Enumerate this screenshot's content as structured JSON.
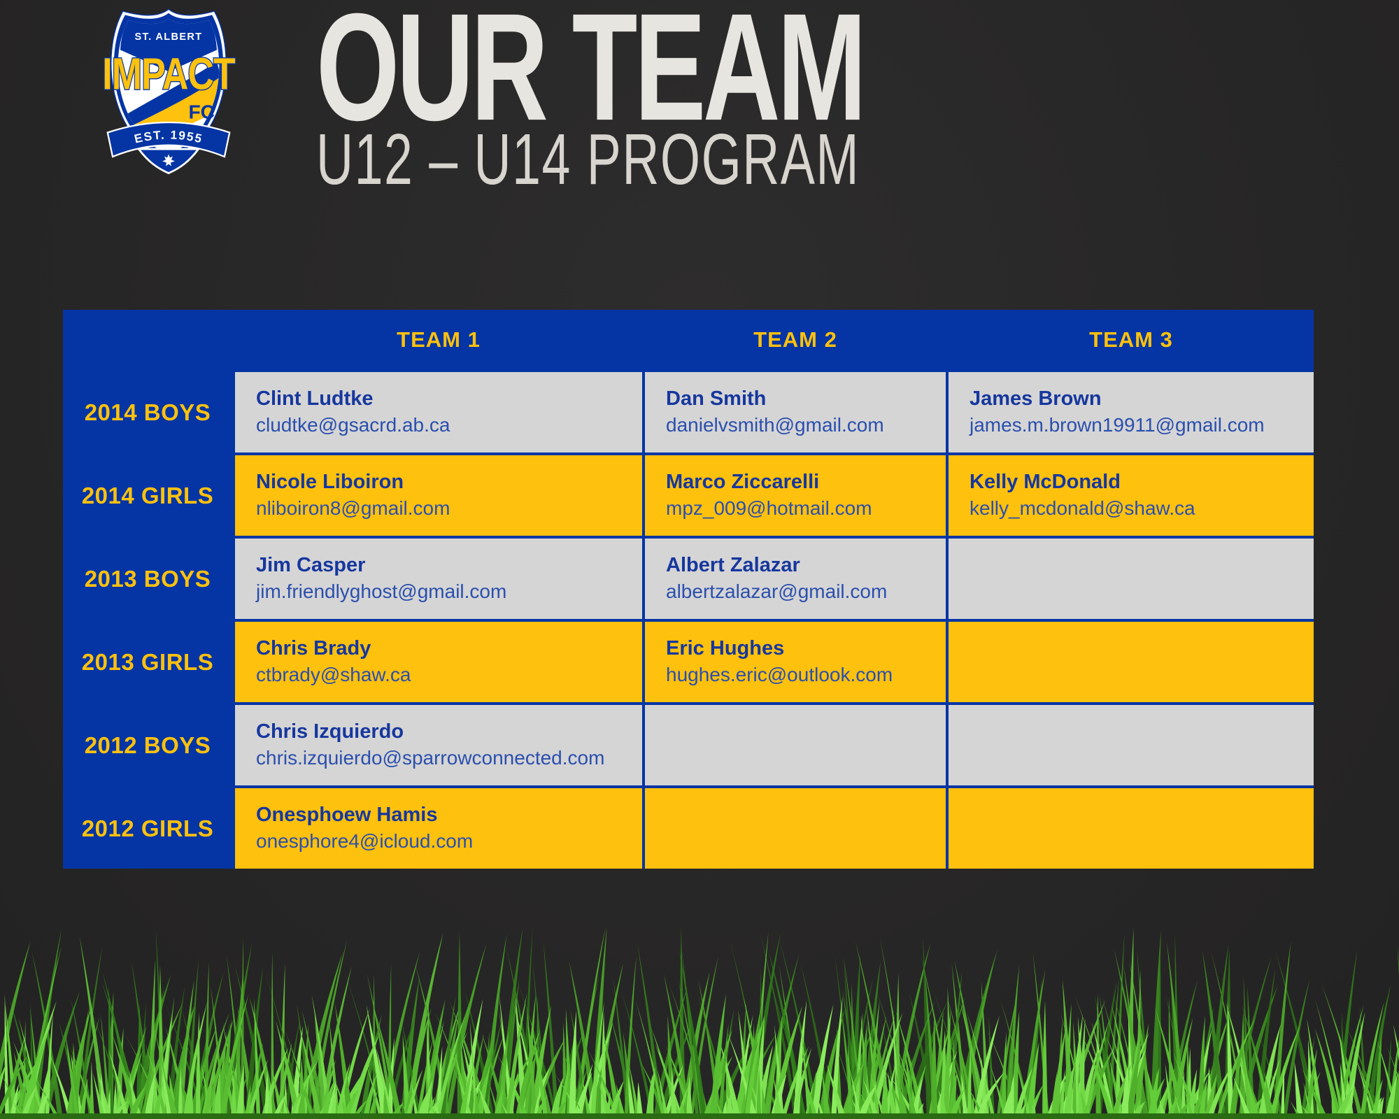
{
  "page": {
    "background_color": "#272626"
  },
  "logo": {
    "location": "ST. ALBERT",
    "name": "IMPACT",
    "suffix": "FC",
    "established": "EST. 1955"
  },
  "header": {
    "title": "OUR TEAM",
    "subtitle": "U12 – U14 PROGRAM"
  },
  "colors": {
    "accent_blue": "#0535a4",
    "accent_yellow": "#fec10d",
    "cell_gray": "#d5d5d5",
    "title_white": "#e7e5e0",
    "name_text_blue": "#16379e",
    "email_text_blue": "#2b4fae",
    "grass_green": "#5ec936"
  },
  "table": {
    "columns": [
      "TEAM 1",
      "TEAM 2",
      "TEAM 3"
    ],
    "rows": [
      {
        "label": "2014 BOYS",
        "cells": [
          {
            "name": "Clint Ludtke",
            "email": "cludtke@gsacrd.ab.ca"
          },
          {
            "name": "Dan Smith",
            "email": "danielvsmith@gmail.com"
          },
          {
            "name": "James Brown",
            "email": "james.m.brown19911@gmail.com"
          }
        ]
      },
      {
        "label": "2014 GIRLS",
        "cells": [
          {
            "name": "Nicole Liboiron",
            "email": "nliboiron8@gmail.com"
          },
          {
            "name": "Marco Ziccarelli",
            "email": "mpz_009@hotmail.com"
          },
          {
            "name": "Kelly McDonald",
            "email": "kelly_mcdonald@shaw.ca"
          }
        ]
      },
      {
        "label": "2013 BOYS",
        "cells": [
          {
            "name": "Jim Casper",
            "email": "jim.friendlyghost@gmail.com"
          },
          {
            "name": "Albert Zalazar",
            "email": "albertzalazar@gmail.com"
          },
          null
        ]
      },
      {
        "label": "2013 GIRLS",
        "cells": [
          {
            "name": "Chris Brady",
            "email": "ctbrady@shaw.ca"
          },
          {
            "name": "Eric Hughes",
            "email": "hughes.eric@outlook.com"
          },
          null
        ]
      },
      {
        "label": "2012 BOYS",
        "cells": [
          {
            "name": "Chris Izquierdo",
            "email": "chris.izquierdo@sparrowconnected.com"
          },
          null,
          null
        ]
      },
      {
        "label": "2012 GIRLS",
        "cells": [
          {
            "name": "Onesphoew Hamis",
            "email": "onesphore4@icloud.com"
          },
          null,
          null
        ]
      }
    ]
  }
}
